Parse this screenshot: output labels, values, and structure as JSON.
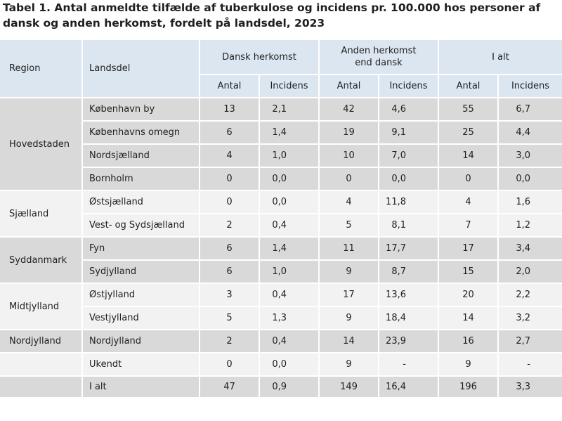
{
  "title": "Tabel 1. Antal anmeldte tilfælde af tuberkulose og incidens pr. 100.000 hos personer af dansk og anden herkomst, fordelt på landsdel, 2023",
  "header": {
    "region": "Region",
    "landsdel": "Landsdel",
    "groups": [
      "Dansk herkomst",
      "Anden herkomst end dansk",
      "I alt"
    ],
    "sub": [
      "Antal",
      "Incidens",
      "Antal",
      "Incidens",
      "Antal",
      "Incidens"
    ]
  },
  "regions": [
    "Hovedstaden",
    "Sjælland",
    "Syddanmark",
    "Midtjylland",
    "Nordjylland",
    "",
    ""
  ],
  "rows": [
    {
      "landsdel": "København by",
      "values": [
        "13",
        "2,1",
        "42",
        "4,6",
        "55",
        "6,7"
      ]
    },
    {
      "landsdel": "Københavns omegn",
      "values": [
        "6",
        "1,4",
        "19",
        "9,1",
        "25",
        "4,4"
      ]
    },
    {
      "landsdel": "Nordsjælland",
      "values": [
        "4",
        "1,0",
        "10",
        "7,0",
        "14",
        "3,0"
      ]
    },
    {
      "landsdel": "Bornholm",
      "values": [
        "0",
        "0,0",
        "0",
        "0,0",
        "0",
        "0,0"
      ]
    },
    {
      "landsdel": "Østsjælland",
      "values": [
        "0",
        "0,0",
        "4",
        "11,8",
        "4",
        "1,6"
      ]
    },
    {
      "landsdel": "Vest- og Sydsjælland",
      "values": [
        "2",
        "0,4",
        "5",
        "8,1",
        "7",
        "1,2"
      ]
    },
    {
      "landsdel": "Fyn",
      "values": [
        "6",
        "1,4",
        "11",
        "17,7",
        "17",
        "3,4"
      ]
    },
    {
      "landsdel": "Sydjylland",
      "values": [
        "6",
        "1,0",
        "9",
        "8,7",
        "15",
        "2,0"
      ]
    },
    {
      "landsdel": "Østjylland",
      "values": [
        "3",
        "0,4",
        "17",
        "13,6",
        "20",
        "2,2"
      ]
    },
    {
      "landsdel": "Vestjylland",
      "values": [
        "5",
        "1,3",
        "9",
        "18,4",
        "14",
        "3,2"
      ]
    },
    {
      "landsdel": "Nordjylland",
      "values": [
        "2",
        "0,4",
        "14",
        "23,9",
        "16",
        "2,7"
      ]
    },
    {
      "landsdel": "Ukendt",
      "values": [
        "0",
        "0,0",
        "9",
        "-",
        "9",
        "-"
      ]
    },
    {
      "landsdel": "I alt",
      "values": [
        "47",
        "0,9",
        "149",
        "16,4",
        "196",
        "3,3"
      ]
    }
  ],
  "colors": {
    "header_bg": "#dce6f1",
    "row_dark": "#d9d9d9",
    "row_light": "#f2f2f2"
  }
}
